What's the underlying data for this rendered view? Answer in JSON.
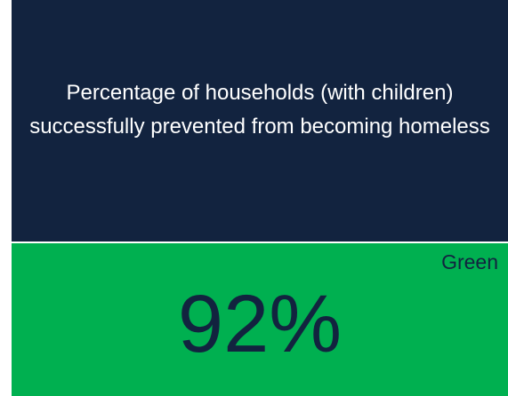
{
  "tile": {
    "title": "Percentage of households (with children) successfully prevented from becoming homeless",
    "status": "Green",
    "value": "92%"
  }
}
